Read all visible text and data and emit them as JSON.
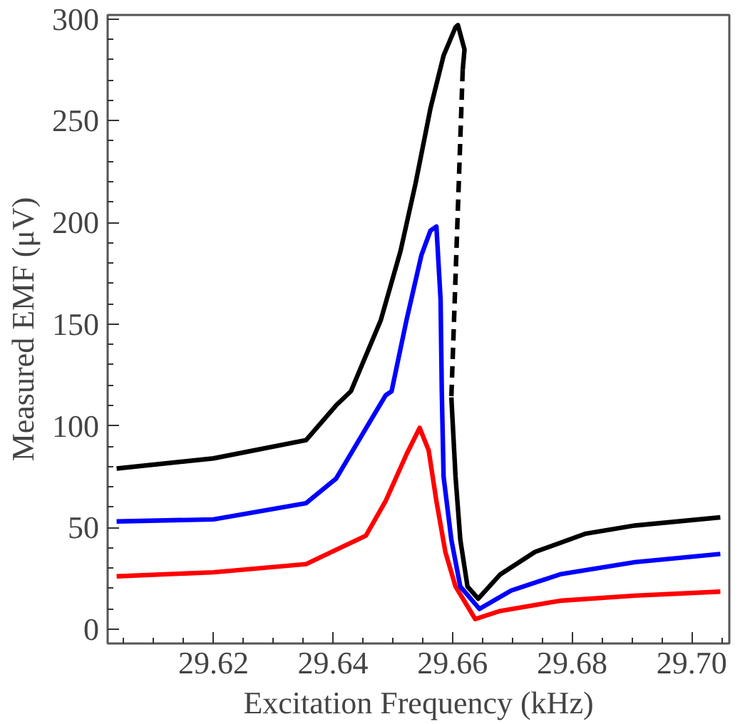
{
  "chart_data": {
    "type": "line",
    "xlabel": "Excitation Frequency (kHz)",
    "ylabel": "Measured EMF (μV)",
    "xlim": [
      29.6023,
      29.7063
    ],
    "ylim": [
      -7,
      302
    ],
    "xticks": [
      29.62,
      29.64,
      29.66,
      29.68,
      {
        "value": 29.7,
        "label": "29.70"
      }
    ],
    "yticks": [
      0,
      50,
      100,
      150,
      200,
      250,
      300
    ],
    "grid": false,
    "marker": "none",
    "line_style": "solid",
    "series": [
      {
        "color": "#ff0000",
        "x": [
          29.6038,
          29.62,
          29.6355,
          29.6405,
          29.6455,
          29.6488,
          29.6523,
          29.6545,
          29.656,
          29.6573,
          29.6588,
          29.6605,
          29.6638,
          29.668,
          29.678,
          29.6905,
          29.7048
        ],
        "values": [
          26,
          28,
          32,
          39,
          46,
          63,
          86,
          99,
          88,
          63,
          38,
          21,
          5,
          9,
          14,
          16.5,
          18.5
        ]
      },
      {
        "color": "#0000ff",
        "x": [
          29.6038,
          29.62,
          29.6355,
          29.6405,
          29.6488,
          29.6498,
          29.6523,
          29.6548,
          29.6563,
          29.6573,
          29.658,
          29.6582,
          29.6585,
          29.6598,
          29.6613,
          29.6645,
          29.6698,
          29.678,
          29.6905,
          29.7048
        ],
        "values": [
          53,
          54,
          62,
          74,
          115,
          117,
          152,
          184,
          196,
          198,
          162,
          117,
          75,
          44,
          21,
          10,
          19,
          27,
          33,
          37
        ]
      },
      {
        "color": "#000000",
        "x": [
          29.6038,
          29.62,
          29.6355,
          29.6405,
          29.643,
          29.648,
          29.6513,
          29.6538,
          29.6563,
          29.6585,
          29.6605,
          29.6609,
          29.662,
          29.6617
        ],
        "values": [
          79,
          84,
          93,
          110,
          117,
          152,
          186,
          219,
          256,
          282,
          296,
          297,
          285,
          275
        ]
      },
      {
        "color": "#000000",
        "line_style": "dashed",
        "x": [
          29.6617,
          29.6598
        ],
        "values": [
          275,
          114
        ]
      },
      {
        "color": "#000000",
        "x": [
          29.6598,
          29.6605,
          29.6613,
          29.6625,
          29.6643,
          29.668,
          29.6738,
          29.6823,
          29.6905,
          29.7048
        ],
        "values": [
          114,
          75,
          44,
          21,
          15,
          27,
          38,
          47,
          51,
          55
        ]
      }
    ]
  }
}
